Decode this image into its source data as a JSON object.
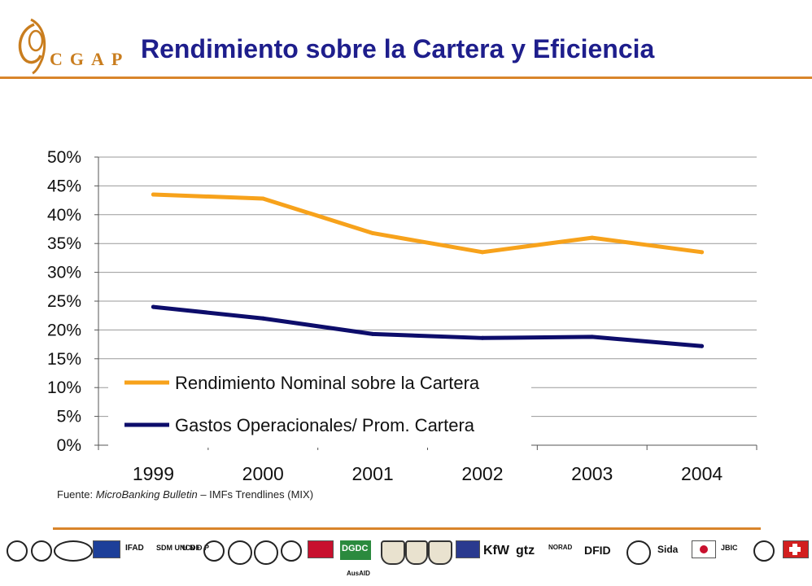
{
  "header": {
    "org": "CGAP",
    "title": "Rendimiento sobre la Cartera y Eficiencia",
    "brand_color": "#c97d1e",
    "title_color": "#1e1e8c",
    "rule_color": "#d9852b"
  },
  "chart_data": {
    "type": "line",
    "categories": [
      "1999",
      "2000",
      "2001",
      "2002",
      "2003",
      "2004"
    ],
    "y_ticks": [
      "0%",
      "5%",
      "10%",
      "15%",
      "20%",
      "25%",
      "30%",
      "35%",
      "40%",
      "45%",
      "50%"
    ],
    "ylim": [
      0,
      50
    ],
    "grid": true,
    "legend_position": "bottom-left, inside plot",
    "series": [
      {
        "name": "Rendimiento Nominal sobre la Cartera",
        "color": "#f7a21b",
        "values": [
          43.5,
          42.8,
          36.8,
          33.5,
          36.0,
          33.5
        ]
      },
      {
        "name": "Gastos Operacionales/ Prom. Cartera",
        "color": "#0d0d6b",
        "values": [
          24.0,
          22.0,
          19.3,
          18.6,
          18.8,
          17.2
        ]
      }
    ]
  },
  "source": {
    "prefix": "Fuente: ",
    "publication": "MicroBanking Bulletin",
    "rest": " – IMFs Trendlines (MIX)"
  },
  "donors": {
    "labels": [
      "IFAD",
      "SDM UNCDF",
      "U N D P",
      "DGDC",
      "KfW",
      "gtz",
      "NORAD",
      "DFID",
      "Sida",
      "JBIC",
      "AusAID"
    ]
  }
}
